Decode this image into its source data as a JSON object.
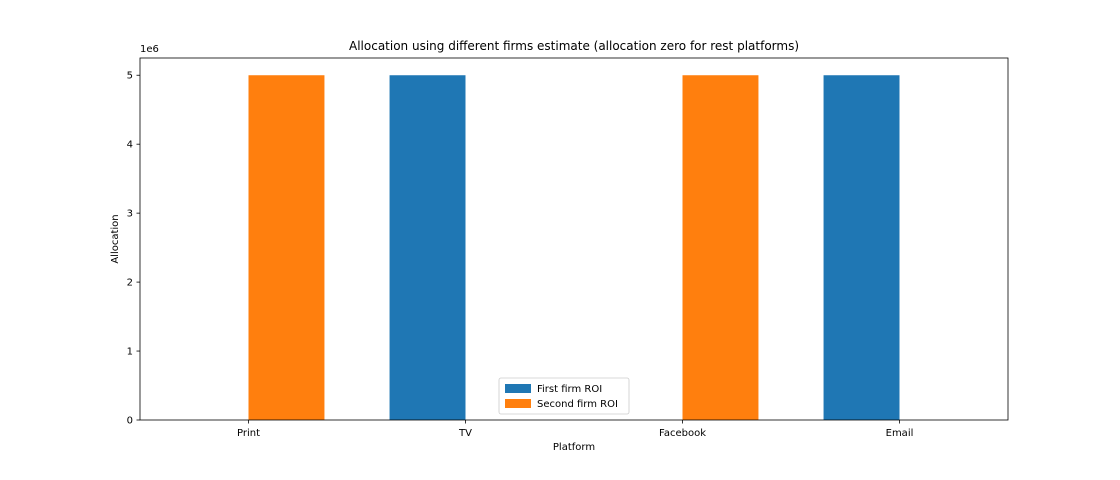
{
  "chart_data": {
    "type": "bar",
    "title": "Allocation using different firms estimate (allocation zero for rest platforms)",
    "xlabel": "Platform",
    "ylabel": "Allocation",
    "y_offset_label": "1e6",
    "categories": [
      "Print",
      "TV",
      "Facebook",
      "Email"
    ],
    "series": [
      {
        "name": "First firm ROI",
        "color": "#1f77b4",
        "values": [
          0,
          5,
          0,
          5
        ]
      },
      {
        "name": "Second firm ROI",
        "color": "#ff7f0e",
        "values": [
          5,
          0,
          5,
          0
        ]
      }
    ],
    "value_unit_multiplier": 1000000,
    "ylim": [
      0,
      5.25
    ],
    "yticks": [
      0,
      1,
      2,
      3,
      4,
      5
    ],
    "grid": false,
    "legend_position": "lower-center"
  }
}
